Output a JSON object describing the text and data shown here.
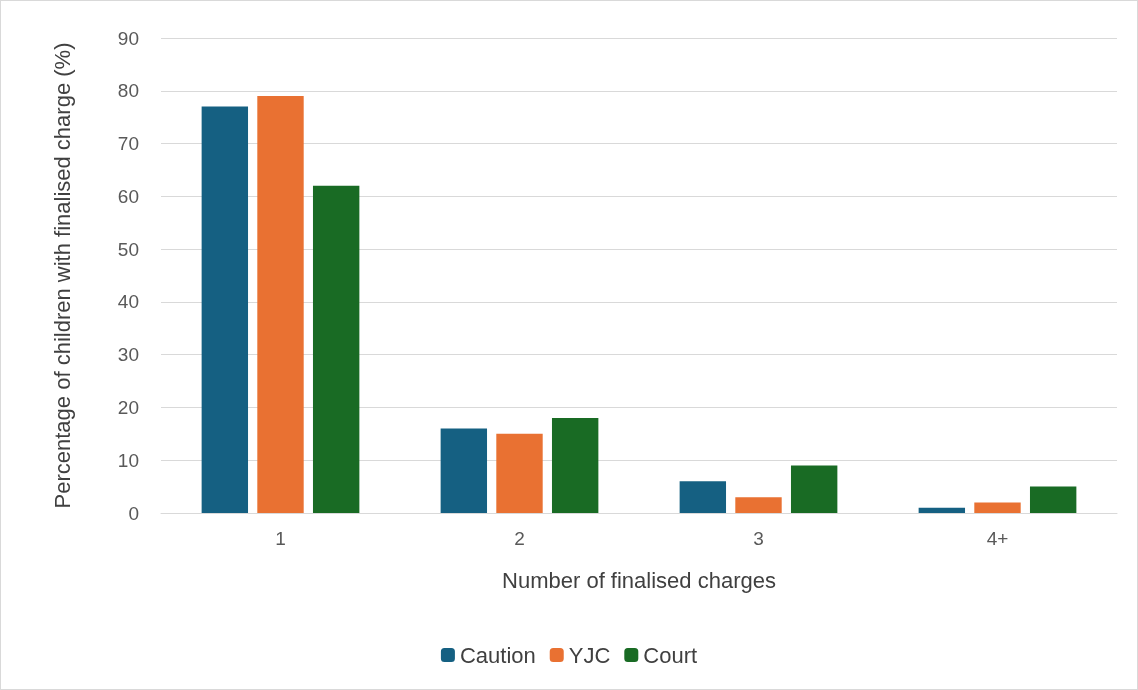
{
  "chart_data": {
    "type": "bar",
    "xlabel": "Number of finalised charges",
    "ylabel": "Percentage of children with finalised charge (%)",
    "categories": [
      "1",
      "2",
      "3",
      "4+"
    ],
    "series": [
      {
        "name": "Caution",
        "color": "#156082",
        "values": [
          77,
          16,
          6,
          1
        ]
      },
      {
        "name": "YJC",
        "color": "#e97132",
        "values": [
          79,
          15,
          3,
          2
        ]
      },
      {
        "name": "Court",
        "color": "#196b24",
        "values": [
          62,
          18,
          9,
          5
        ]
      }
    ],
    "ylim": [
      0,
      90
    ],
    "yticks": [
      0,
      10,
      20,
      30,
      40,
      50,
      60,
      70,
      80,
      90
    ],
    "grid": "y",
    "legend": "bottom"
  }
}
